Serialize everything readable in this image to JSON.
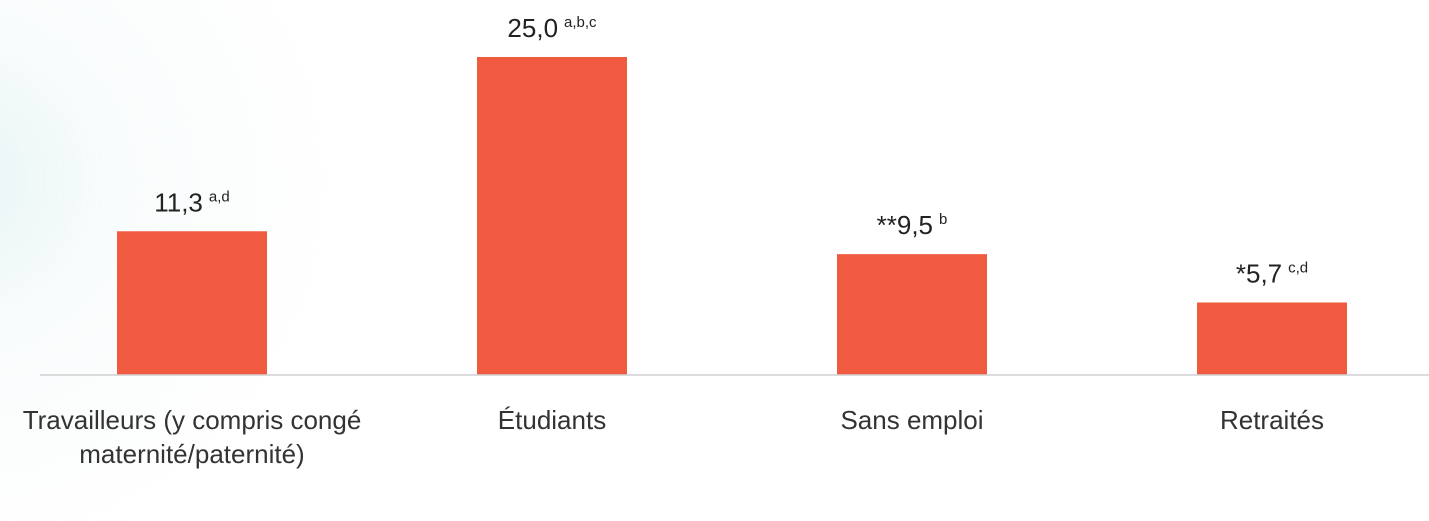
{
  "chart_data": {
    "type": "bar",
    "categories": [
      "Travailleurs (y compris congé maternité/paternité)",
      "Étudiants",
      "Sans emploi",
      "Retraités"
    ],
    "values": [
      11.3,
      25.0,
      9.5,
      5.7
    ],
    "value_labels": [
      "11,3",
      "25,0",
      "**9,5",
      "*5,7"
    ],
    "value_label_notes": [
      "a,d",
      "a,b,c",
      "b",
      "c,d"
    ],
    "color": "#f05a40",
    "ylim": [
      0,
      25
    ]
  }
}
